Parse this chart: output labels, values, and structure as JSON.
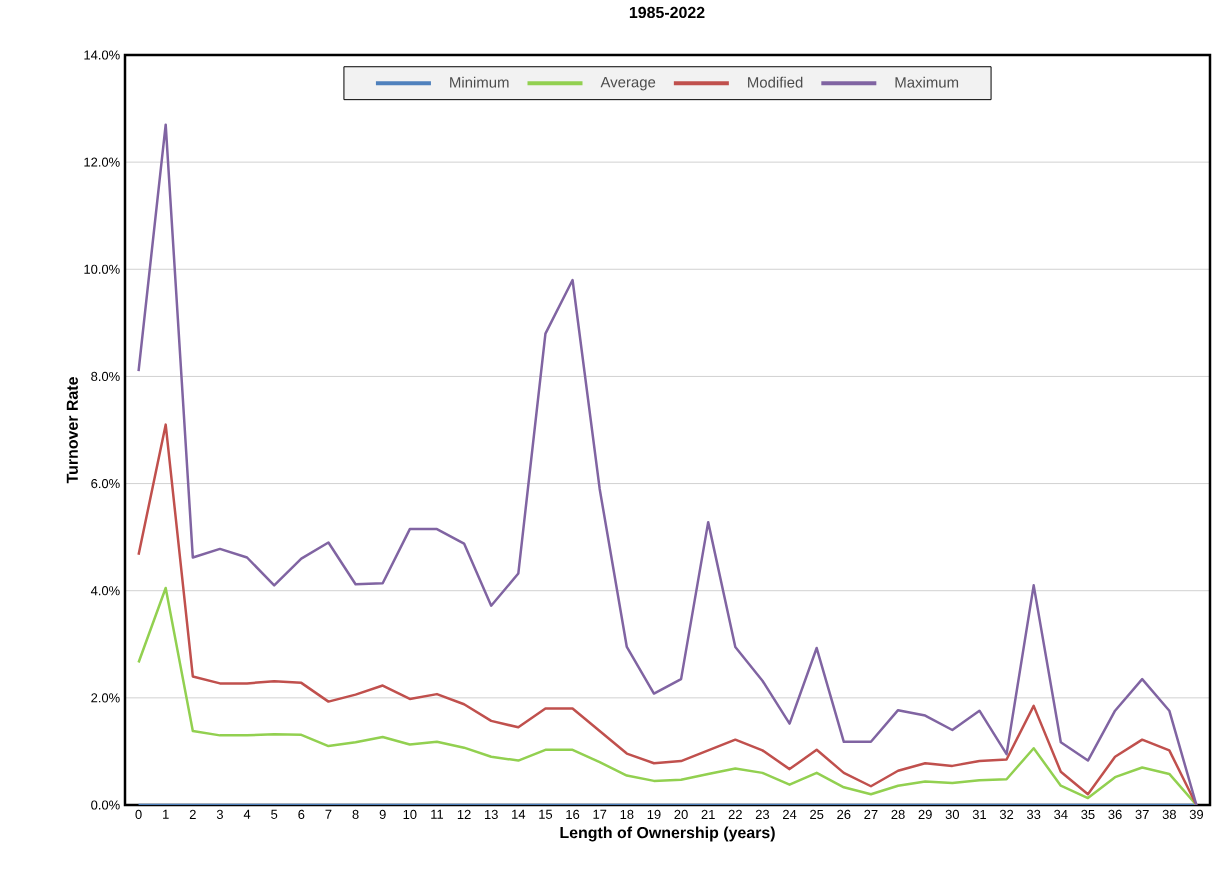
{
  "chart_data": {
    "type": "line",
    "title": "1985-2022",
    "xlabel": "Length of Ownership (years)",
    "ylabel": "Turnover Rate",
    "categories": [
      "0",
      "1",
      "2",
      "3",
      "4",
      "5",
      "6",
      "7",
      "8",
      "9",
      "10",
      "11",
      "12",
      "13",
      "14",
      "15",
      "16",
      "17",
      "18",
      "19",
      "20",
      "21",
      "22",
      "23",
      "24",
      "25",
      "26",
      "27",
      "28",
      "29",
      "30",
      "31",
      "32",
      "33",
      "34",
      "35",
      "36",
      "37",
      "38",
      "39"
    ],
    "ylim": [
      0,
      14
    ],
    "yticks": [
      {
        "value": 0,
        "label": "0.0%"
      },
      {
        "value": 2,
        "label": "2.0%"
      },
      {
        "value": 4,
        "label": "4.0%"
      },
      {
        "value": 6,
        "label": "6.0%"
      },
      {
        "value": 8,
        "label": "8.0%"
      },
      {
        "value": 10,
        "label": "10.0%"
      },
      {
        "value": 12,
        "label": "12.0%"
      },
      {
        "value": 14,
        "label": "14.0%"
      }
    ],
    "grid": "y",
    "legend": "top",
    "marker": "none",
    "line_style": "solid",
    "series": [
      {
        "name": "Minimum",
        "color": "#4f81bd",
        "values": [
          0,
          0,
          0,
          0,
          0,
          0,
          0,
          0,
          0,
          0,
          0,
          0,
          0,
          0,
          0,
          0,
          0,
          0,
          0,
          0,
          0,
          0,
          0,
          0,
          0,
          0,
          0,
          0,
          0,
          0,
          0,
          0,
          0,
          0,
          0,
          0,
          0,
          0,
          0,
          0
        ]
      },
      {
        "name": "Average",
        "color": "#92d050",
        "values": [
          2.66,
          4.05,
          1.38,
          1.3,
          1.3,
          1.32,
          1.31,
          1.1,
          1.17,
          1.27,
          1.13,
          1.18,
          1.07,
          0.9,
          0.83,
          1.03,
          1.03,
          0.8,
          0.55,
          0.45,
          0.47,
          0.58,
          0.68,
          0.6,
          0.38,
          0.6,
          0.33,
          0.2,
          0.36,
          0.44,
          0.41,
          0.46,
          0.48,
          1.06,
          0.36,
          0.13,
          0.52,
          0.7,
          0.58,
          0
        ]
      },
      {
        "name": "Modified",
        "color": "#c0504d",
        "values": [
          4.67,
          7.1,
          2.4,
          2.27,
          2.27,
          2.31,
          2.28,
          1.93,
          2.06,
          2.23,
          1.98,
          2.07,
          1.88,
          1.57,
          1.45,
          1.8,
          1.8,
          1.38,
          0.96,
          0.78,
          0.82,
          1.02,
          1.22,
          1.02,
          0.67,
          1.03,
          0.6,
          0.35,
          0.64,
          0.78,
          0.73,
          0.82,
          0.85,
          1.85,
          0.62,
          0.2,
          0.9,
          1.22,
          1.02,
          0
        ]
      },
      {
        "name": "Maximum",
        "color": "#8064a2",
        "values": [
          8.1,
          12.7,
          4.62,
          4.78,
          4.62,
          4.1,
          4.6,
          4.9,
          4.12,
          4.14,
          5.15,
          5.15,
          4.88,
          3.72,
          4.32,
          8.8,
          9.8,
          5.9,
          2.95,
          2.08,
          2.35,
          5.28,
          2.95,
          2.32,
          1.52,
          2.93,
          1.18,
          1.18,
          1.77,
          1.67,
          1.4,
          1.76,
          0.95,
          4.1,
          1.17,
          0.83,
          1.76,
          2.35,
          1.76,
          0
        ]
      }
    ]
  }
}
